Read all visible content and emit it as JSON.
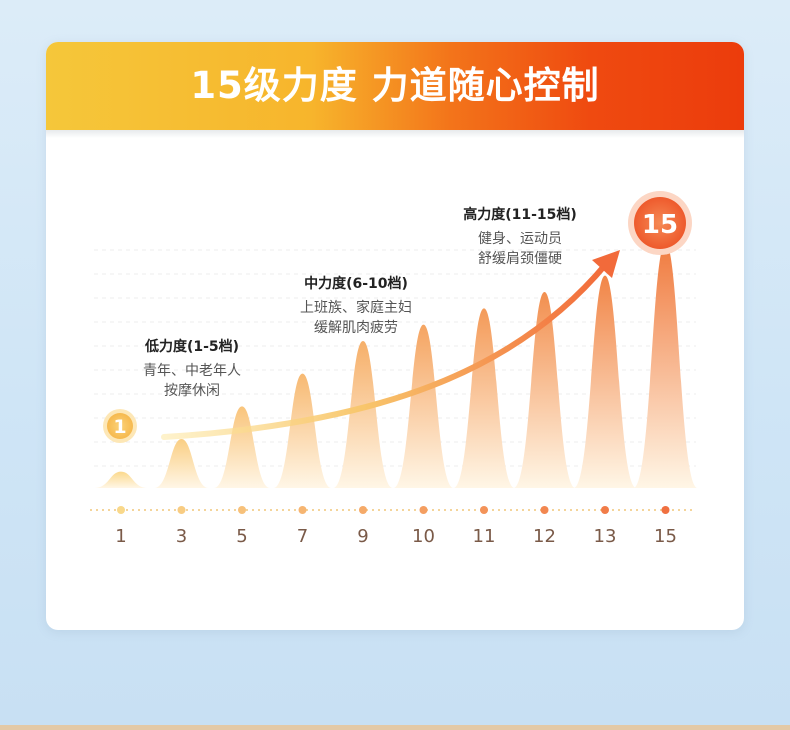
{
  "banner": {
    "title": "15级力度 力道随心控制"
  },
  "levels": [
    {
      "label": "1",
      "value": 1
    },
    {
      "label": "3",
      "value": 3
    },
    {
      "label": "5",
      "value": 5
    },
    {
      "label": "7",
      "value": 7
    },
    {
      "label": "9",
      "value": 9
    },
    {
      "label": "10",
      "value": 10
    },
    {
      "label": "11",
      "value": 11
    },
    {
      "label": "12",
      "value": 12
    },
    {
      "label": "13",
      "value": 13
    },
    {
      "label": "15",
      "value": 15
    }
  ],
  "bands": [
    {
      "title": "低力度(1-5档)",
      "lines": [
        "青年、中老年人",
        "按摩休闲"
      ]
    },
    {
      "title": "中力度(6-10档)",
      "lines": [
        "上班族、家庭主妇",
        "缓解肌肉疲劳"
      ]
    },
    {
      "title": "高力度(11-15档)",
      "lines": [
        "健身、运动员",
        "舒缓肩颈僵硬"
      ]
    }
  ],
  "badges": {
    "start": "1",
    "end": "15"
  },
  "colors": {
    "peak_light": "#fbd98c",
    "peak_dark": "#f07a3e",
    "axis_text": "#7a5a48",
    "badge_start": "#f8c96a",
    "badge_end": "#f06a3c"
  }
}
